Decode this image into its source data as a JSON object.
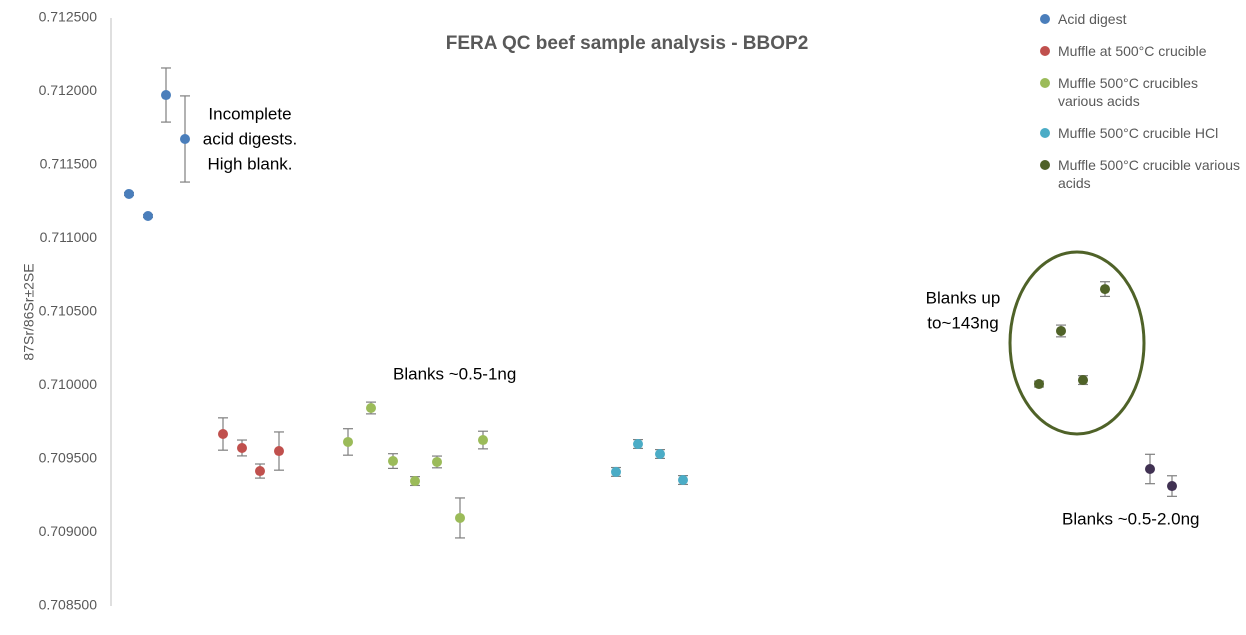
{
  "chart_data": {
    "type": "scatter",
    "title": "FERA QC beef sample analysis - BBOP2",
    "ylabel": "87Sr/86Sr±2SE",
    "xlim": [
      0,
      56.5
    ],
    "ylim": [
      0.7085,
      0.7125
    ],
    "yticks": [
      {
        "value": 0.7085,
        "label": "0.708500"
      },
      {
        "value": 0.709,
        "label": "0.709000"
      },
      {
        "value": 0.7095,
        "label": "0.709500"
      },
      {
        "value": 0.71,
        "label": "0.710000"
      },
      {
        "value": 0.7105,
        "label": "0.710500"
      },
      {
        "value": 0.711,
        "label": "0.711000"
      },
      {
        "value": 0.7115,
        "label": "0.711500"
      },
      {
        "value": 0.712,
        "label": "0.712000"
      },
      {
        "value": 0.7125,
        "label": "0.712500"
      }
    ],
    "series": [
      {
        "name": "Acid digest",
        "color": "#4a7ebb",
        "x": [
          0.9,
          1.85,
          2.75,
          3.7
        ],
        "values": [
          0.711303,
          0.711153,
          0.711976,
          0.711677
        ],
        "errors": [
          1e-05,
          1e-05,
          0.000184,
          0.000293
        ]
      },
      {
        "name": "Muffle at 500°C crucible",
        "color": "#c0504d",
        "x": [
          5.6,
          6.55,
          7.45,
          8.4
        ],
        "values": [
          0.70967,
          0.709575,
          0.709418,
          0.709554
        ],
        "errors": [
          0.00011,
          5.4e-05,
          4.8e-05,
          0.00013
        ]
      },
      {
        "name": "Muffle 500°C  crucibles various acids",
        "color": "#9bbb59",
        "x": [
          11.85,
          13,
          14.1,
          15.2,
          16.3,
          17.45,
          18.6
        ],
        "values": [
          0.709616,
          0.709847,
          0.709486,
          0.70935,
          0.70948,
          0.709099,
          0.709629
        ],
        "errors": [
          9e-05,
          4e-05,
          5e-05,
          3e-05,
          4e-05,
          0.000136,
          6e-05
        ]
      },
      {
        "name": "Muffle 500°C crucible HCl",
        "color": "#4bacc6",
        "x": [
          25.25,
          26.35,
          27.45,
          28.6
        ],
        "values": [
          0.709412,
          0.709602,
          0.709534,
          0.709357
        ],
        "errors": [
          3e-05,
          3e-05,
          3e-05,
          3e-05
        ]
      },
      {
        "name": "Muffle 500°C crucible various acids",
        "color": "#4f6228",
        "x": [
          46.4,
          47.5,
          48.6,
          49.7
        ],
        "values": [
          0.71001,
          0.710371,
          0.710037,
          0.710656
        ],
        "errors": [
          2e-05,
          4e-05,
          3e-05,
          5e-05
        ]
      },
      {
        "name": "",
        "color": "#403152",
        "x": [
          51.95,
          53.05
        ],
        "values": [
          0.709432,
          0.709316
        ],
        "errors": [
          0.0001,
          7e-05
        ]
      }
    ],
    "annotations": [
      [
        "Incomplete",
        "acid digests.",
        "High blank."
      ],
      [
        "Blanks ~0.5-1ng"
      ],
      [
        "Blanks up",
        "to~143ng"
      ],
      [
        "Blanks ~0.5-2.0ng"
      ]
    ]
  }
}
